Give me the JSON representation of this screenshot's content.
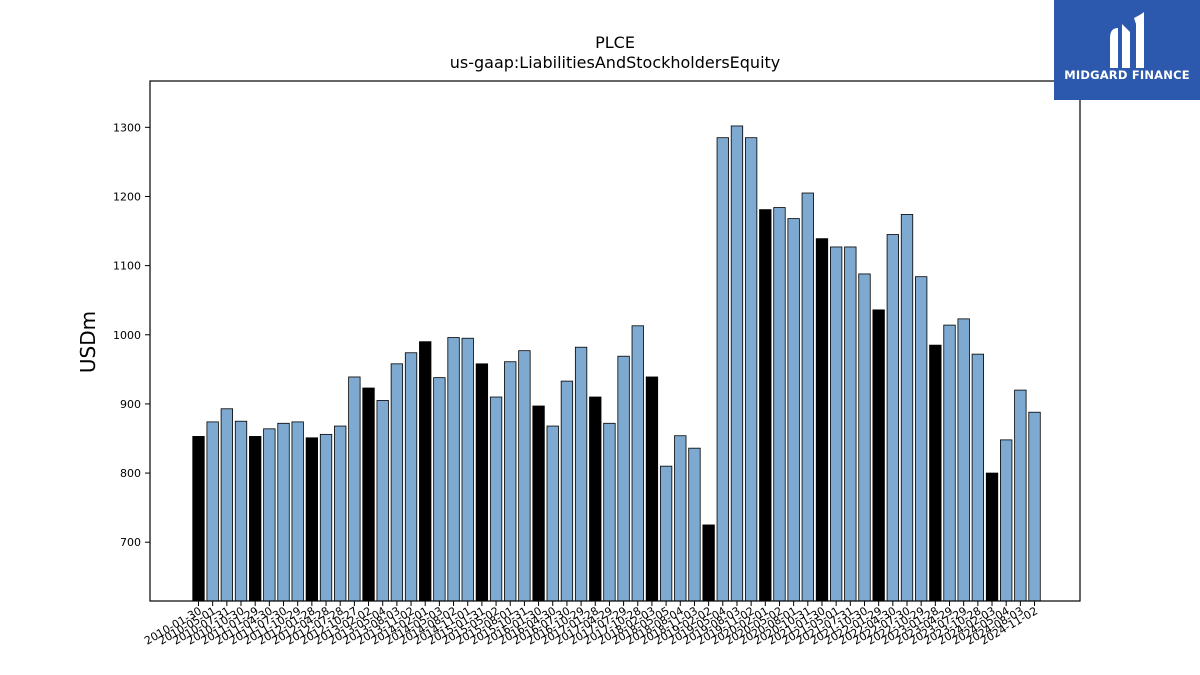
{
  "chart_data": {
    "type": "bar",
    "title": "PLCE",
    "subtitle": "us-gaap:LiabilitiesAndStockholdersEquity",
    "ylabel": "USDm",
    "xlabel": "",
    "ylim": [
      615,
      1367
    ],
    "yticks": [
      700,
      800,
      900,
      1000,
      1100,
      1200,
      1300
    ],
    "grid": false,
    "colors": {
      "quarter": "#7eaad1",
      "annual": "#000000",
      "edge": "#000000"
    },
    "categories": [
      "2010-01-30",
      "2010-05-01",
      "2010-07-31",
      "2010-10-30",
      "2011-01-29",
      "2011-04-30",
      "2011-07-30",
      "2011-10-29",
      "2012-01-28",
      "2012-04-28",
      "2012-07-28",
      "2012-10-27",
      "2013-02-02",
      "2013-05-04",
      "2013-08-03",
      "2013-11-02",
      "2014-02-01",
      "2014-05-03",
      "2014-08-02",
      "2014-11-01",
      "2015-01-31",
      "2015-05-02",
      "2015-08-01",
      "2015-10-31",
      "2016-01-30",
      "2016-04-30",
      "2016-07-30",
      "2016-10-29",
      "2017-01-28",
      "2017-04-29",
      "2017-07-29",
      "2017-10-28",
      "2018-02-03",
      "2018-05-05",
      "2018-08-04",
      "2018-11-03",
      "2019-02-02",
      "2019-05-04",
      "2019-08-03",
      "2019-11-02",
      "2020-02-01",
      "2020-05-02",
      "2020-08-01",
      "2020-10-31",
      "2021-01-30",
      "2021-05-01",
      "2021-07-31",
      "2021-10-30",
      "2022-01-29",
      "2022-04-30",
      "2022-07-30",
      "2022-10-29",
      "2023-01-28",
      "2023-04-29",
      "2023-07-29",
      "2023-10-28",
      "2024-02-03",
      "2024-05-04",
      "2024-08-03",
      "2024-11-02"
    ],
    "values": [
      853,
      874,
      893,
      875,
      853,
      864,
      872,
      874,
      851,
      856,
      868,
      939,
      923,
      905,
      958,
      974,
      990,
      938,
      996,
      995,
      958,
      910,
      961,
      977,
      897,
      868,
      933,
      982,
      910,
      872,
      969,
      1013,
      939,
      810,
      854,
      836,
      725,
      1285,
      1302,
      1285,
      1181,
      1184,
      1168,
      1205,
      1139,
      1127,
      1127,
      1088,
      1036,
      1145,
      1174,
      1084,
      985,
      1014,
      1023,
      972,
      800,
      848,
      920,
      888
    ],
    "annual": [
      true,
      false,
      false,
      false,
      true,
      false,
      false,
      false,
      true,
      false,
      false,
      false,
      true,
      false,
      false,
      false,
      true,
      false,
      false,
      false,
      true,
      false,
      false,
      false,
      true,
      false,
      false,
      false,
      true,
      false,
      false,
      false,
      true,
      false,
      false,
      false,
      true,
      false,
      false,
      false,
      true,
      false,
      false,
      false,
      true,
      false,
      false,
      false,
      true,
      false,
      false,
      false,
      true,
      false,
      false,
      false,
      true,
      false,
      false,
      false
    ]
  },
  "watermark": {
    "text": "MIDGARD FINANCE",
    "background": "#2c58ad"
  }
}
